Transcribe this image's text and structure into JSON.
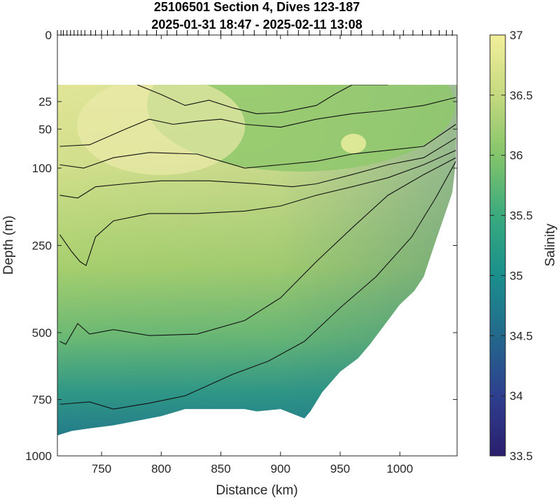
{
  "chart_data": {
    "type": "heatmap",
    "title": "25106501 Section 4, Dives 123-187",
    "subtitle": "2025-01-31 18:47 - 2025-02-11 13:08",
    "xlabel": "Distance (km)",
    "ylabel": "Depth (m)",
    "xlim": [
      713,
      1048
    ],
    "ylim": [
      1000,
      0
    ],
    "xticks": [
      750,
      800,
      850,
      900,
      950,
      1000
    ],
    "yticks": [
      0,
      25,
      50,
      100,
      250,
      500,
      750,
      1000
    ],
    "y_scale": "square-root",
    "colorbar": {
      "label": "Salinity",
      "range": [
        33.5,
        37
      ],
      "ticks": [
        33.5,
        34,
        34.5,
        35,
        35.5,
        36,
        36.5,
        37
      ],
      "colormap": [
        "#2b1e6e",
        "#2e3f8f",
        "#23698c",
        "#1a8f8c",
        "#3aaa7e",
        "#83c46a",
        "#c5d97f",
        "#f2ef9b"
      ]
    },
    "contour_levels": [
      35.5,
      35.8,
      36.0,
      36.2,
      36.4,
      36.6,
      36.7
    ],
    "data_top_depth": 14,
    "dive_positions_km": [
      713,
      716,
      718,
      721,
      724,
      727,
      730,
      733,
      736,
      741,
      745,
      750,
      755,
      760,
      767,
      774,
      781,
      788,
      796,
      805,
      813,
      822,
      831,
      840,
      850,
      859,
      869,
      878,
      888,
      897,
      906,
      915,
      924,
      933,
      942,
      951,
      959,
      968,
      977,
      986,
      995,
      1003,
      1011,
      1019,
      1026,
      1033,
      1039,
      1044
    ],
    "bottom_boundary": {
      "x": [
        713,
        725,
        745,
        760,
        800,
        820,
        870,
        880,
        900,
        920,
        925,
        935,
        950,
        965,
        975,
        990,
        1000,
        1012,
        1020,
        1030,
        1038,
        1044,
        1047
      ],
      "depth": [
        905,
        885,
        870,
        860,
        820,
        790,
        790,
        800,
        790,
        830,
        800,
        720,
        640,
        590,
        540,
        460,
        410,
        370,
        330,
        240,
        180,
        140,
        90
      ]
    },
    "contours": [
      {
        "level": 35.5,
        "x": [
          715,
          740,
          760,
          790,
          820,
          860,
          890,
          920,
          950,
          980,
          1010,
          1030,
          1047
        ],
        "depth": [
          770,
          760,
          790,
          765,
          735,
          650,
          600,
          530,
          420,
          330,
          230,
          150,
          90
        ]
      },
      {
        "level": 35.8,
        "x": [
          715,
          720,
          730,
          740,
          760,
          790,
          830,
          870,
          900,
          930,
          960,
          990,
          1020,
          1047
        ],
        "depth": [
          530,
          540,
          470,
          505,
          490,
          510,
          505,
          460,
          390,
          290,
          210,
          145,
          110,
          85
        ]
      },
      {
        "level": 36.0,
        "x": [
          715,
          725,
          732,
          737,
          745,
          760,
          790,
          830,
          870,
          900,
          930,
          960,
          990,
          1020,
          1047
        ],
        "depth": [
          225,
          265,
          290,
          300,
          230,
          195,
          180,
          180,
          175,
          165,
          145,
          130,
          115,
          95,
          75
        ]
      },
      {
        "level": 36.2,
        "x": [
          715,
          730,
          745,
          770,
          800,
          840,
          880,
          910,
          930,
          960,
          990,
          1020,
          1047
        ],
        "depth": [
          145,
          150,
          130,
          125,
          120,
          120,
          125,
          130,
          125,
          110,
          95,
          85,
          60
        ]
      },
      {
        "level": 36.4,
        "x": [
          715,
          735,
          760,
          790,
          830,
          870,
          900,
          930,
          960,
          990,
          1020,
          1047
        ],
        "depth": [
          95,
          100,
          85,
          78,
          80,
          100,
          95,
          90,
          80,
          75,
          70,
          45
        ]
      },
      {
        "level": 36.6,
        "x": [
          715,
          740,
          770,
          790,
          810,
          830,
          850,
          870,
          900,
          930,
          960,
          990,
          1020,
          1047
        ],
        "depth": [
          70,
          68,
          50,
          40,
          45,
          42,
          40,
          45,
          48,
          40,
          35,
          32,
          28,
          22
        ]
      },
      {
        "level": 36.7,
        "x": [
          780,
          800,
          820,
          840,
          860,
          880,
          900,
          930,
          945,
          960,
          990
        ],
        "depth": [
          14,
          20,
          28,
          24,
          30,
          35,
          34,
          28,
          20,
          14,
          14
        ]
      }
    ]
  }
}
